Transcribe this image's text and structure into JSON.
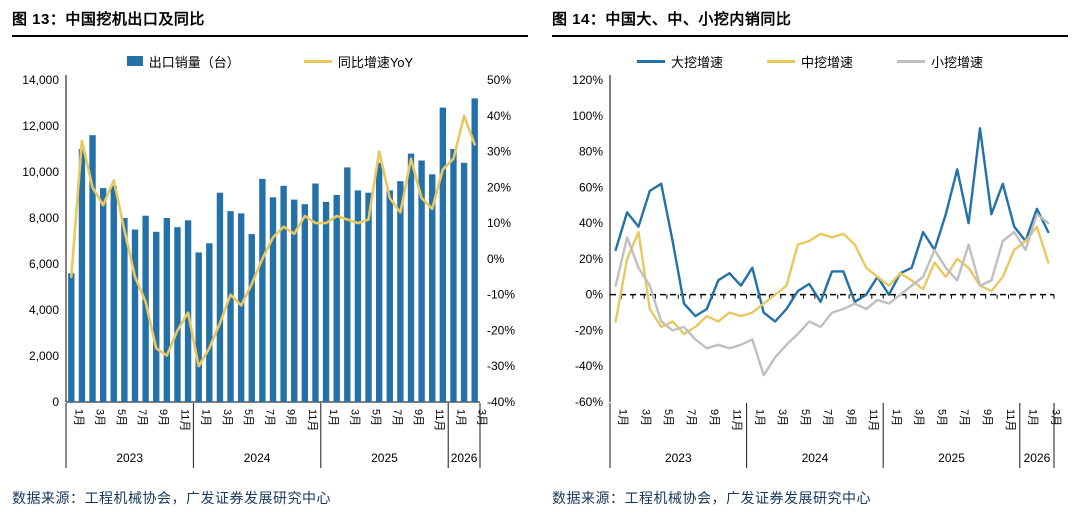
{
  "page": {
    "background": "#FFFFFF"
  },
  "chart_data": [
    {
      "type": "bar+line",
      "title": "图 13：中国挖机出口及同比",
      "source": "数据来源：工程机械协会，广发证券发展研究中心",
      "legend_position": "top",
      "x_unit": "month",
      "x_range": [
        "2023-01",
        "2026-03"
      ],
      "x_tick_indices": [
        0,
        2,
        4,
        6,
        8,
        10,
        12,
        14,
        16,
        18,
        20,
        22,
        24,
        26,
        28,
        30,
        32,
        34,
        36,
        38
      ],
      "x_tick_labels": [
        "1月",
        "3月",
        "5月",
        "7月",
        "9月",
        "11月",
        "1月",
        "3月",
        "5月",
        "7月",
        "9月",
        "11月",
        "1月",
        "3月",
        "5月",
        "7月",
        "9月",
        "11月",
        "1月",
        "3月"
      ],
      "year_groups": [
        {
          "label": "2023",
          "start": 0,
          "end": 11
        },
        {
          "label": "2024",
          "start": 12,
          "end": 23
        },
        {
          "label": "2025",
          "start": 24,
          "end": 35
        },
        {
          "label": "2026",
          "start": 36,
          "end": 38
        }
      ],
      "left_axis": {
        "min": 0,
        "max": 14000,
        "step": 2000,
        "tick_values": [
          0,
          2000,
          4000,
          6000,
          8000,
          10000,
          12000,
          14000
        ],
        "tick_labels": [
          "0",
          "2,000",
          "4,000",
          "6,000",
          "8,000",
          "10,000",
          "12,000",
          "14,000"
        ]
      },
      "right_axis": {
        "min": -40,
        "max": 50,
        "step": 10,
        "tick_values": [
          -40,
          -30,
          -20,
          -10,
          0,
          10,
          20,
          30,
          40,
          50
        ],
        "tick_labels": [
          "-40%",
          "-30%",
          "-20%",
          "-10%",
          "0%",
          "10%",
          "20%",
          "30%",
          "40%",
          "50%"
        ]
      },
      "series": [
        {
          "name": "出口销量（台）",
          "type": "bar",
          "axis": "left",
          "unit": "台",
          "color": "#2470A8",
          "values": [
            5600,
            11000,
            11600,
            9300,
            9400,
            8000,
            7500,
            8100,
            7400,
            8000,
            7600,
            7900,
            6500,
            6900,
            9100,
            8300,
            8200,
            7300,
            9700,
            8900,
            9400,
            8800,
            8600,
            9500,
            8700,
            9000,
            10200,
            9200,
            9100,
            10400,
            9200,
            9600,
            10800,
            10500,
            9900,
            12800,
            11000,
            10400,
            13200
          ]
        },
        {
          "name": "同比增速YoY",
          "type": "line",
          "axis": "right",
          "unit": "%",
          "color": "#E8C860",
          "values": [
            -5,
            33,
            20,
            15,
            22,
            8,
            -5,
            -12,
            -25,
            -27,
            -20,
            -15,
            -30,
            -25,
            -18,
            -10,
            -13,
            -7,
            0,
            6,
            9,
            7,
            12,
            10,
            10,
            12,
            11,
            10,
            11,
            30,
            17,
            13,
            28,
            17,
            14,
            25,
            28,
            40,
            32
          ]
        }
      ]
    },
    {
      "type": "line",
      "title": "图 14：中国大、中、小挖内销同比",
      "source": "数据来源：工程机械协会，广发证券发展研究中心",
      "legend_position": "top",
      "x_unit": "month",
      "x_range": [
        "2023-01",
        "2026-03"
      ],
      "zero_line": true,
      "x_tick_indices": [
        0,
        2,
        4,
        6,
        8,
        10,
        12,
        14,
        16,
        18,
        20,
        22,
        24,
        26,
        28,
        30,
        32,
        34,
        36,
        38
      ],
      "x_tick_labels": [
        "1月",
        "3月",
        "5月",
        "7月",
        "9月",
        "11月",
        "1月",
        "3月",
        "5月",
        "7月",
        "9月",
        "11月",
        "1月",
        "3月",
        "5月",
        "7月",
        "9月",
        "11月",
        "1月",
        "3月"
      ],
      "year_groups": [
        {
          "label": "2023",
          "start": 0,
          "end": 11
        },
        {
          "label": "2024",
          "start": 12,
          "end": 23
        },
        {
          "label": "2025",
          "start": 24,
          "end": 35
        },
        {
          "label": "2026",
          "start": 36,
          "end": 38
        }
      ],
      "y_axis": {
        "min": -60,
        "max": 120,
        "step": 20,
        "tick_values": [
          -60,
          -40,
          -20,
          0,
          20,
          40,
          60,
          80,
          100,
          120
        ],
        "tick_labels": [
          "-60%",
          "-40%",
          "-20%",
          "0%",
          "20%",
          "40%",
          "60%",
          "80%",
          "100%",
          "120%"
        ]
      },
      "series": [
        {
          "name": "大挖增速",
          "unit": "%",
          "color": "#2470A8",
          "values": [
            25,
            46,
            38,
            58,
            62,
            30,
            -5,
            -12,
            -8,
            8,
            12,
            5,
            15,
            -10,
            -15,
            -8,
            2,
            6,
            -4,
            13,
            13,
            -4,
            0,
            10,
            0,
            12,
            15,
            35,
            25,
            45,
            70,
            40,
            93,
            45,
            62,
            38,
            30,
            48,
            35
          ]
        },
        {
          "name": "中挖增速",
          "unit": "%",
          "color": "#E8C860",
          "values": [
            -15,
            20,
            35,
            -8,
            -18,
            -15,
            -22,
            -18,
            -12,
            -15,
            -10,
            -12,
            -10,
            -5,
            0,
            5,
            28,
            30,
            34,
            32,
            34,
            28,
            15,
            10,
            5,
            12,
            8,
            3,
            18,
            10,
            20,
            15,
            5,
            2,
            10,
            25,
            30,
            38,
            18
          ]
        },
        {
          "name": "小挖增速",
          "unit": "%",
          "color": "#BFBFBF",
          "values": [
            5,
            32,
            15,
            5,
            -15,
            -20,
            -18,
            -25,
            -30,
            -28,
            -30,
            -28,
            -25,
            -45,
            -35,
            -28,
            -22,
            -15,
            -18,
            -10,
            -8,
            -5,
            -8,
            -3,
            -5,
            0,
            5,
            10,
            25,
            15,
            8,
            28,
            5,
            8,
            30,
            35,
            25,
            45,
            40
          ]
        }
      ]
    }
  ]
}
